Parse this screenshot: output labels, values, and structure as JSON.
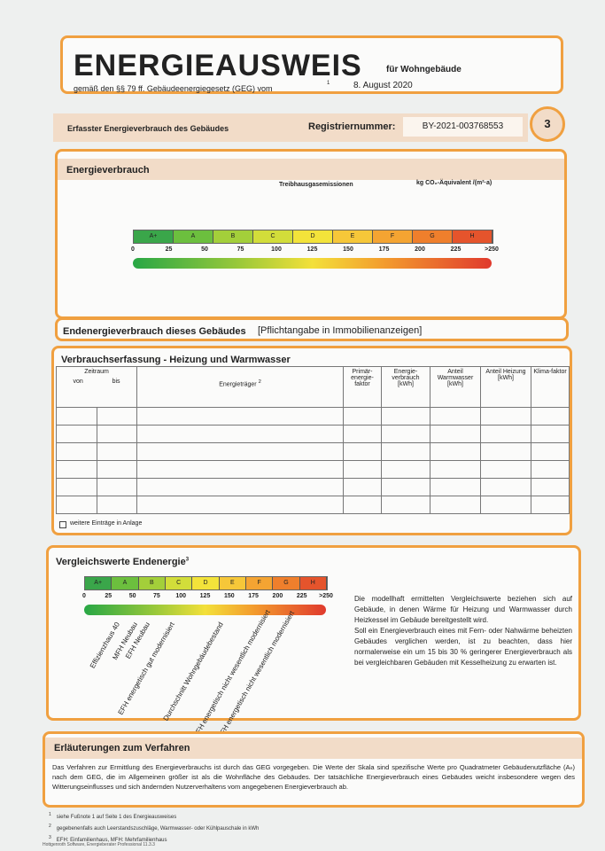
{
  "header": {
    "title": "ENERGIEAUSWEIS",
    "subtitle": "für Wohngebäude",
    "law": "gemäß den §§ 79 ff. Gebäudeenergiegesetz (GEG) vom",
    "law_footnote": "1",
    "date": "8. August 2020"
  },
  "info_bar": {
    "label": "Erfasster Energieverbrauch des Gebäudes",
    "reg_label": "Registriernummer:",
    "reg_number": "BY-2021-003768553",
    "page": "3"
  },
  "energy": {
    "title": "Energieverbrauch",
    "emissions_label": "Treibhausgasemissionen",
    "emissions_unit": "kg CO₂-Äquivalent /(m²·a)",
    "classes": [
      "A+",
      "A",
      "B",
      "C",
      "D",
      "E",
      "F",
      "G",
      "H"
    ],
    "scale": [
      "0",
      "25",
      "50",
      "75",
      "100",
      "125",
      "150",
      "175",
      "200",
      "225",
      ">250"
    ]
  },
  "end_energy": {
    "title": "Endenergieverbrauch dieses Gebäudes",
    "note": "[Pflichtangabe in Immobilienanzeigen]"
  },
  "consumption": {
    "title": "Verbrauchserfassung - Heizung und Warmwasser",
    "headers": {
      "period": "Zeitraum",
      "from": "von",
      "to": "bis",
      "carrier": "Energieträger",
      "carrier_footnote": "2",
      "primary_factor": "Primär-energie-faktor",
      "consumption": "Energie-verbrauch [kWh]",
      "hot_water": "Anteil Warmwasser [kWh]",
      "heating": "Anteil Heizung [kWh]",
      "climate_factor": "Klima-faktor"
    },
    "checkbox_label": "weitere Einträge in Anlage"
  },
  "comparison": {
    "title": "Vergleichswerte Endenergie",
    "title_footnote": "3",
    "buildings": [
      "Effizienzhaus 40",
      "MFH Neubau",
      "EFH Neubau",
      "EFH energetisch gut modernisiert",
      "Durchschnitt Wohngebäudebestand",
      "MFH energetisch nicht wesentlich modernisiert",
      "EFH energetisch nicht wesentlich modernisiert"
    ],
    "paragraphs": [
      "Die modellhaft ermittelten Vergleichswerte beziehen sich auf Gebäude, in denen Wärme für Heizung und Warmwasser durch Heizkessel im Gebäude bereitgestellt wird.",
      "Soll ein Energieverbrauch eines mit Fern- oder Nahwärme beheizten Gebäudes verglichen werden, ist zu beachten, dass hier normalerweise ein um 15 bis 30 % geringerer Energieverbrauch als bei vergleichbaren Gebäuden mit Kesselheizung zu erwarten ist."
    ]
  },
  "explanation": {
    "title": "Erläuterungen zum Verfahren",
    "text": "Das Verfahren zur Ermittlung des Energieverbrauchs ist durch das GEG vorgegeben. Die Werte der Skala sind spezifische Werte pro Quadratmeter Gebäudenutzfläche (Aₙ) nach dem GEG, die im Allgemeinen größer ist als die Wohnfläche des Gebäudes. Der tatsächliche Energieverbrauch eines Gebäudes weicht insbesondere wegen des Witterungseinflusses und sich ändernden Nutzerverhaltens vom angegebenen Energieverbrauch ab."
  },
  "footnotes": [
    {
      "number": "1",
      "text": "siehe Fußnote 1 auf Seite 1 des Energieausweises"
    },
    {
      "number": "2",
      "text": "gegebenenfalls auch Leerstandszuschläge, Warmwasser- oder Kühlpauschale in kWh"
    },
    {
      "number": "3",
      "text": "EFH: Einfamilienhaus, MFH: Mehrfamilienhaus"
    }
  ],
  "software": "Hottgenroth Software, Energieberater Professional 11.3.3"
}
